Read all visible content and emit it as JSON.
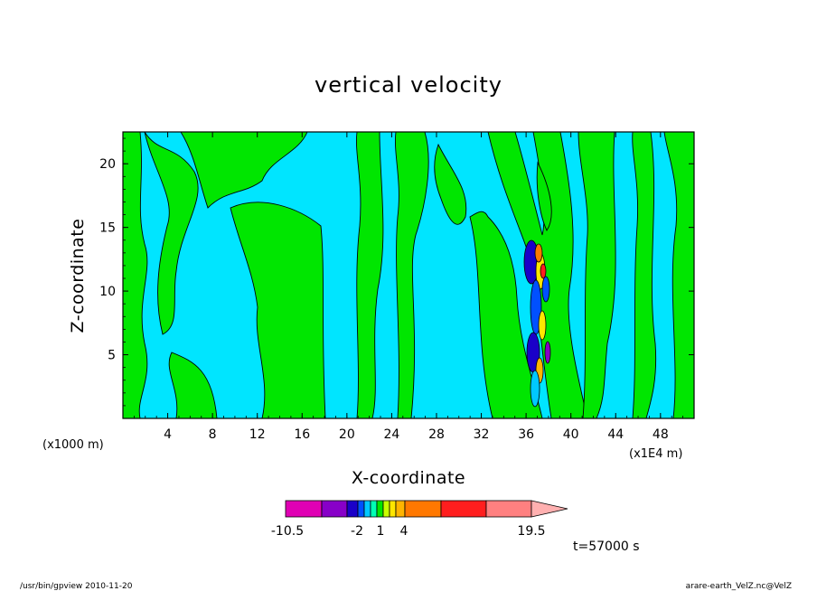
{
  "chart_data": {
    "type": "contour",
    "title": "vertical velocity",
    "xlabel": "X-coordinate",
    "ylabel": "Z-coordinate",
    "x_unit_label": "(x1E4 m)",
    "y_unit_label": "(x1000 m)",
    "x_ticks": [
      "4",
      "8",
      "12",
      "16",
      "20",
      "24",
      "28",
      "32",
      "36",
      "40",
      "44",
      "48"
    ],
    "y_ticks": [
      "5",
      "10",
      "15",
      "20"
    ],
    "xlim": [
      0,
      51
    ],
    "ylim": [
      0,
      22.5
    ],
    "colors": {
      "negative": "#00e5ff",
      "positive": "#00e600",
      "contour_line": "#000000",
      "frame": "#000000"
    },
    "colorbar": {
      "labels": [
        "-10.5",
        "-2",
        "1",
        "4",
        "19.5"
      ],
      "bins": [
        {
          "color": "#e000b4"
        },
        {
          "color": "#8800c8"
        },
        {
          "color": "#1a00c8"
        },
        {
          "color": "#0050ff"
        },
        {
          "color": "#00c8ff"
        },
        {
          "color": "#00ffb4"
        },
        {
          "color": "#00e600"
        },
        {
          "color": "#c8ff00"
        },
        {
          "color": "#ffe600"
        },
        {
          "color": "#ffb400"
        },
        {
          "color": "#ff7800"
        },
        {
          "color": "#ff1e1e"
        },
        {
          "color": "#ff8080"
        },
        {
          "color": "#ffb0b0"
        }
      ]
    },
    "time_label": "t=57000  s"
  },
  "footer": {
    "program": "/usr/bin/gpview   2010-11-20",
    "source": "arare-earth_VelZ.nc@VelZ"
  }
}
